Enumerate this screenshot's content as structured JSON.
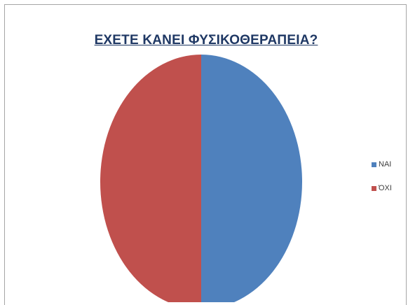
{
  "chart_data": {
    "type": "pie",
    "title": "ΕΧΕΤΕ ΚΑΝΕΙ ΦΥΣΙΚΟΘΕΡΑΠΕΙΑ?",
    "categories": [
      "ΝΑΙ",
      "ΌΧΙ"
    ],
    "values": [
      50,
      50
    ],
    "colors": [
      "#4f81bd",
      "#c0504d"
    ],
    "legend_position": "right"
  }
}
